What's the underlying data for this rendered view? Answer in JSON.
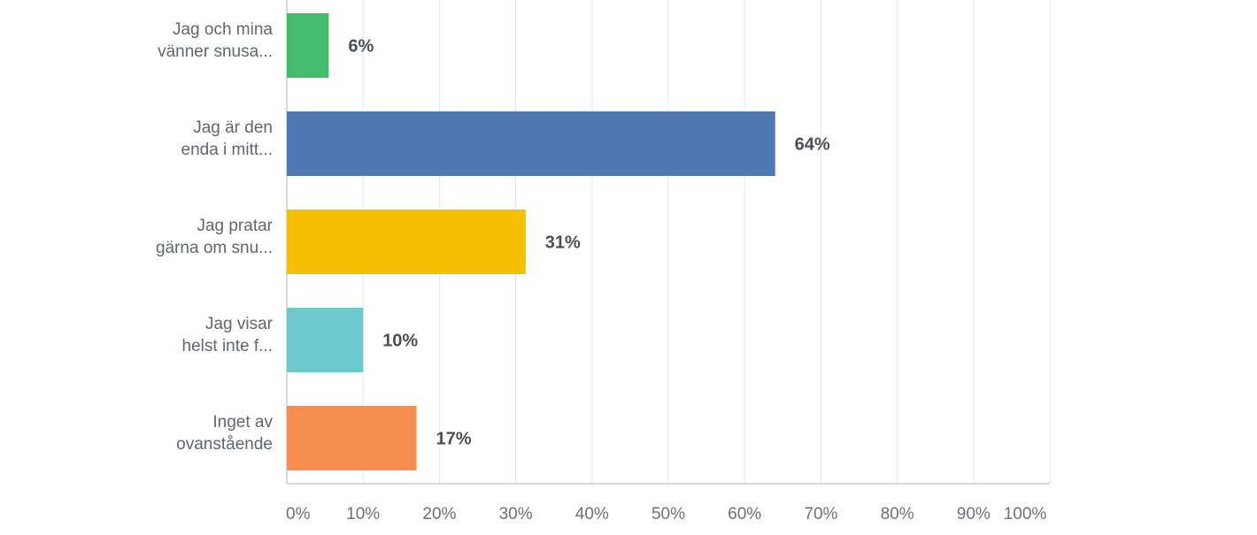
{
  "chart_data": {
    "type": "bar",
    "orientation": "horizontal",
    "title": "",
    "xlabel": "",
    "ylabel": "",
    "xlim": [
      0,
      100
    ],
    "grid": true,
    "categories": [
      [
        "Jag och mina",
        "vänner snusa..."
      ],
      [
        "Jag är den",
        "enda i mitt..."
      ],
      [
        "Jag pratar",
        "gärna om snu..."
      ],
      [
        "Jag visar",
        "helst inte f..."
      ],
      [
        "Inget av",
        "ovanstående"
      ]
    ],
    "values": [
      5.5,
      64,
      31.3,
      10,
      17
    ],
    "value_labels": [
      "6%",
      "64%",
      "31%",
      "10%",
      "17%"
    ],
    "colors": [
      "#43bd6c",
      "#4e79b4",
      "#f6bf00",
      "#6cc8cc",
      "#f68c4f"
    ],
    "ticks": [
      0,
      10,
      20,
      30,
      40,
      50,
      60,
      70,
      80,
      90,
      100
    ],
    "tick_labels": [
      "0%",
      "10%",
      "20%",
      "30%",
      "40%",
      "50%",
      "60%",
      "70%",
      "80%",
      "90%",
      "100%"
    ],
    "grid_color": "#e4e6e8",
    "axis_color": "#c9cdd1"
  }
}
